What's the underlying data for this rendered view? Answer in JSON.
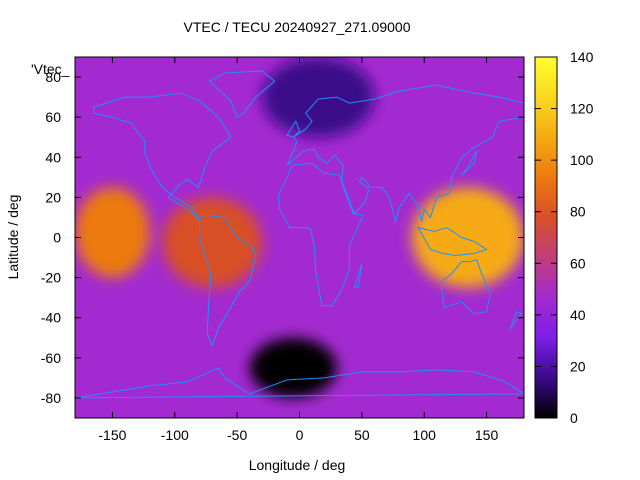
{
  "chart_data": {
    "type": "heatmap",
    "title": "VTEC / TECU 20240927_271.09000",
    "xlabel": "Longitude / deg",
    "ylabel": "Latitude / deg",
    "xlim": [
      -180,
      180
    ],
    "ylim": [
      -90,
      90
    ],
    "x_ticks": [
      -150,
      -100,
      -50,
      0,
      50,
      100,
      150
    ],
    "y_ticks": [
      -80,
      -60,
      -40,
      -20,
      0,
      20,
      40,
      60,
      80
    ],
    "colorbar": {
      "min": 0,
      "max": 140,
      "ticks": [
        0,
        20,
        40,
        60,
        80,
        100,
        120,
        140
      ],
      "colormap": [
        "#000000",
        "#3a0a8a",
        "#7d1ee6",
        "#a32ad0",
        "#c23e7a",
        "#d85028",
        "#ec7a10",
        "#f5aa12",
        "#fbd81e",
        "#ffff30"
      ]
    },
    "legend_key": "'Vtec_",
    "overlay": "coastlines",
    "coastline_color": "#1e90ff",
    "grid": false,
    "features": [
      {
        "region": "equatorial anomaly, Pacific west of Americas",
        "lon": [
          -180,
          -120
        ],
        "lat": [
          -20,
          25
        ],
        "vtec": 95
      },
      {
        "region": "equatorial anomaly, South America / Atlantic",
        "lon": [
          -110,
          -30
        ],
        "lat": [
          -25,
          20
        ],
        "vtec": 75
      },
      {
        "region": "equatorial anomaly, Asia / west Pacific",
        "lon": [
          90,
          180
        ],
        "lat": [
          -25,
          25
        ],
        "vtec": 110
      },
      {
        "region": "night-side low, South Atlantic",
        "lon": [
          -40,
          30
        ],
        "lat": [
          -80,
          -50
        ],
        "vtec": 5
      },
      {
        "region": "high-latitude low, North Atlantic / Europe",
        "lon": [
          -30,
          60
        ],
        "lat": [
          50,
          90
        ],
        "vtec": 15
      },
      {
        "region": "background mid-latitudes",
        "lon": [
          -180,
          180
        ],
        "lat": [
          -90,
          90
        ],
        "vtec": 40
      }
    ]
  }
}
